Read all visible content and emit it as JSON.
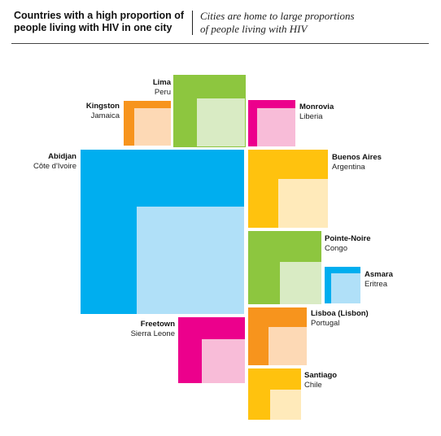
{
  "header": {
    "title_line1": "Countries with a high proportion of",
    "title_line2": "people living with HIV in one city",
    "subtitle_line1": "Cities are home to large proportions",
    "subtitle_line2": "of people living with HIV"
  },
  "chart_data": {
    "type": "treemap",
    "title": "Countries with a high proportion of people living with HIV in one city",
    "subtitle": "Cities are home to large proportions of people living with HIV",
    "colors": {
      "green": [
        "#8dc63f",
        "#d9ebc4"
      ],
      "orange": [
        "#f7941d",
        "#fdd9b5"
      ],
      "magenta": [
        "#ec008c",
        "#f8bcd8"
      ],
      "blue": [
        "#00aeef",
        "#b0e0f8"
      ],
      "yellow": [
        "#ffc20e",
        "#ffeaba"
      ]
    },
    "items": [
      {
        "city": "Lima",
        "country": "Peru",
        "color": "green"
      },
      {
        "city": "Kingston",
        "country": "Jamaica",
        "color": "orange"
      },
      {
        "city": "Monrovia",
        "country": "Liberia",
        "color": "magenta"
      },
      {
        "city": "Abidjan",
        "country": "Côte d'Ivoire",
        "color": "blue"
      },
      {
        "city": "Buenos Aires",
        "country": "Argentina",
        "color": "yellow"
      },
      {
        "city": "Pointe-Noire",
        "country": "Congo",
        "color": "green"
      },
      {
        "city": "Asmara",
        "country": "Eritrea",
        "color": "blue"
      },
      {
        "city": "Freetown",
        "country": "Sierra Leone",
        "color": "magenta"
      },
      {
        "city": "Lisboa (Lisbon)",
        "country": "Portugal",
        "color": "orange"
      },
      {
        "city": "Santiago",
        "country": "Chile",
        "color": "yellow"
      }
    ]
  }
}
